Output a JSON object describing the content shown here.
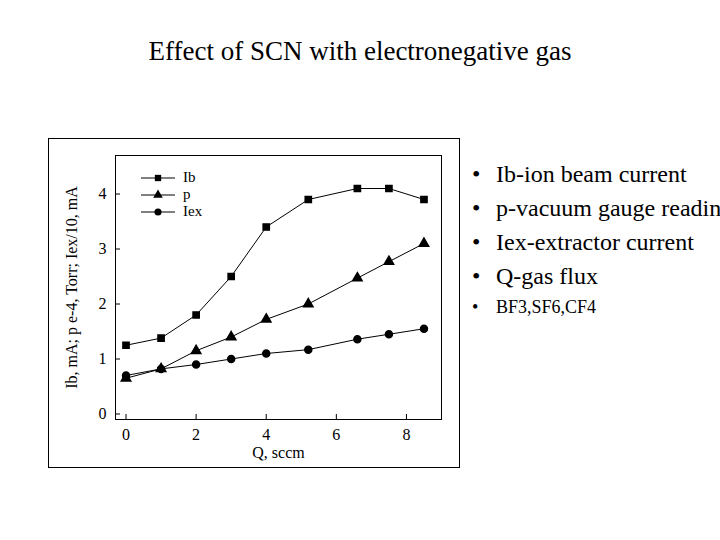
{
  "chart_data": {
    "type": "line",
    "title": "Effect of SCN with electronegative gas",
    "x_label": "Q, sccm",
    "y_label": "Ib, mA; p e-4, Torr; Iex/10, mA",
    "x": [
      0,
      1,
      2,
      3,
      4,
      5.2,
      6.6,
      7.5,
      8.5
    ],
    "series": [
      {
        "name": "Ib",
        "color": "#000000",
        "marker": "square",
        "values": [
          1.25,
          1.38,
          1.8,
          2.5,
          3.4,
          3.9,
          4.1,
          4.1,
          3.9
        ]
      },
      {
        "name": "p",
        "color": "#000000",
        "marker": "triangle",
        "values": [
          0.65,
          0.82,
          1.15,
          1.4,
          1.72,
          2.0,
          2.47,
          2.77,
          3.1
        ]
      },
      {
        "name": "Iex",
        "color": "#000000",
        "marker": "circle",
        "values": [
          0.7,
          0.82,
          0.9,
          1.0,
          1.1,
          1.17,
          1.36,
          1.45,
          1.55
        ]
      }
    ],
    "xlim": [
      -0.3,
      9
    ],
    "ylim": [
      -0.1,
      4.7
    ],
    "xticks": [
      0,
      2,
      4,
      6,
      8
    ],
    "yticks": [
      0,
      1,
      2,
      3,
      4
    ],
    "grid": false,
    "legend": "top-left",
    "annotations": [
      "Ib-ion beam current",
      "p-vacuum gauge reading",
      "Iex-extractor current",
      "Q-gas flux",
      "BF3,SF6,CF4"
    ]
  }
}
